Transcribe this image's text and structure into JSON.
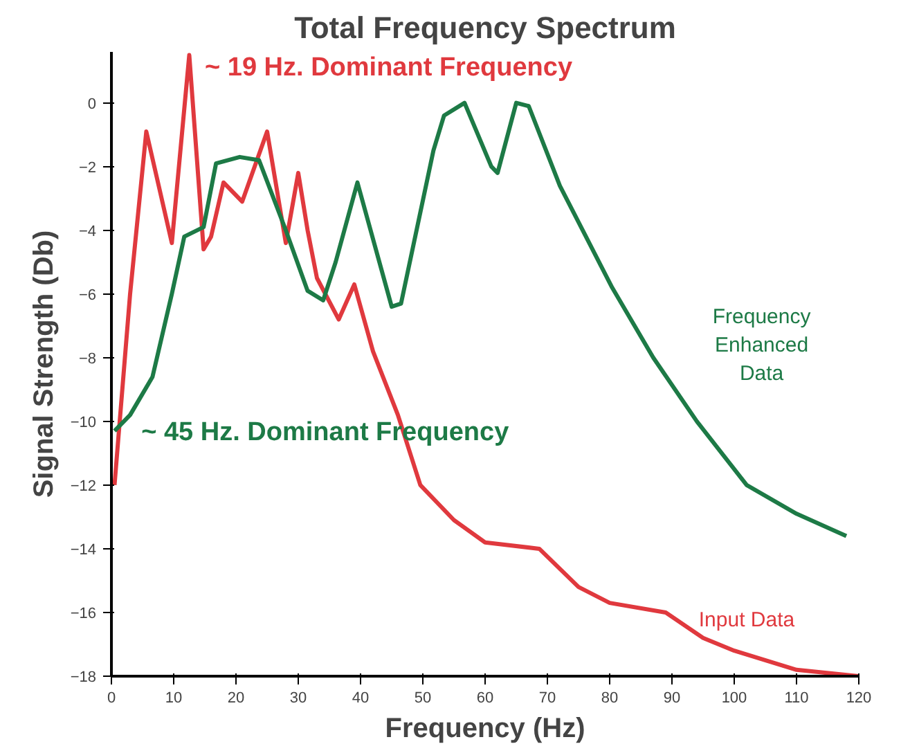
{
  "chart_data": {
    "type": "line",
    "title": "Total Frequency Spectrum",
    "xlabel": "Frequency (Hz)",
    "ylabel": "Signal Strength (Db)",
    "xlim": [
      0,
      120
    ],
    "ylim": [
      -18,
      1.6
    ],
    "xticks": [
      0,
      10,
      20,
      30,
      40,
      50,
      60,
      70,
      80,
      90,
      100,
      110,
      120
    ],
    "yticks": [
      0,
      -2,
      -4,
      -6,
      -8,
      -10,
      -12,
      -14,
      -16,
      -18
    ],
    "grid": false,
    "marker": "none",
    "line_style": "solid",
    "annotations": [
      "~ 19 Hz. Dominant Frequency",
      "~ 45 Hz. Dominant Frequency"
    ],
    "series": [
      {
        "name": "Input Data",
        "color": "#e0393e",
        "x": [
          0.5,
          3,
          5.6,
          9.7,
          12.5,
          14.8,
          16,
          18,
          21,
          25,
          28,
          30,
          31.5,
          33,
          36.5,
          39,
          42,
          46,
          49.6,
          55,
          60,
          68.7,
          75,
          80,
          89,
          95,
          100,
          110,
          120
        ],
        "values": [
          -12,
          -6,
          -0.9,
          -4.4,
          1.5,
          -4.6,
          -4.2,
          -2.5,
          -3.1,
          -0.9,
          -4.4,
          -2.2,
          -4,
          -5.5,
          -6.8,
          -5.7,
          -7.8,
          -9.8,
          -12,
          -13.1,
          -13.8,
          -14,
          -15.2,
          -15.7,
          -16,
          -16.8,
          -17.2,
          -17.8,
          -18
        ]
      },
      {
        "name": "Frequency Enhanced Data",
        "color": "#1d7a46",
        "x": [
          0.5,
          3,
          6.6,
          9.7,
          11.7,
          14.8,
          16.8,
          20.6,
          23.7,
          28,
          31.5,
          34,
          36,
          39.5,
          45,
          46.5,
          51.7,
          53.4,
          56.7,
          61,
          62,
          65,
          67,
          72,
          80.4,
          87,
          94,
          102,
          110,
          118
        ],
        "values": [
          -10.3,
          -9.8,
          -8.6,
          -6,
          -4.2,
          -3.9,
          -1.9,
          -1.7,
          -1.8,
          -4,
          -5.9,
          -6.2,
          -5,
          -2.5,
          -6.4,
          -6.3,
          -1.5,
          -0.4,
          0,
          -2,
          -2.2,
          0,
          -0.1,
          -2.6,
          -5.8,
          -8,
          -10,
          -12,
          -12.9,
          -13.6
        ]
      }
    ]
  }
}
